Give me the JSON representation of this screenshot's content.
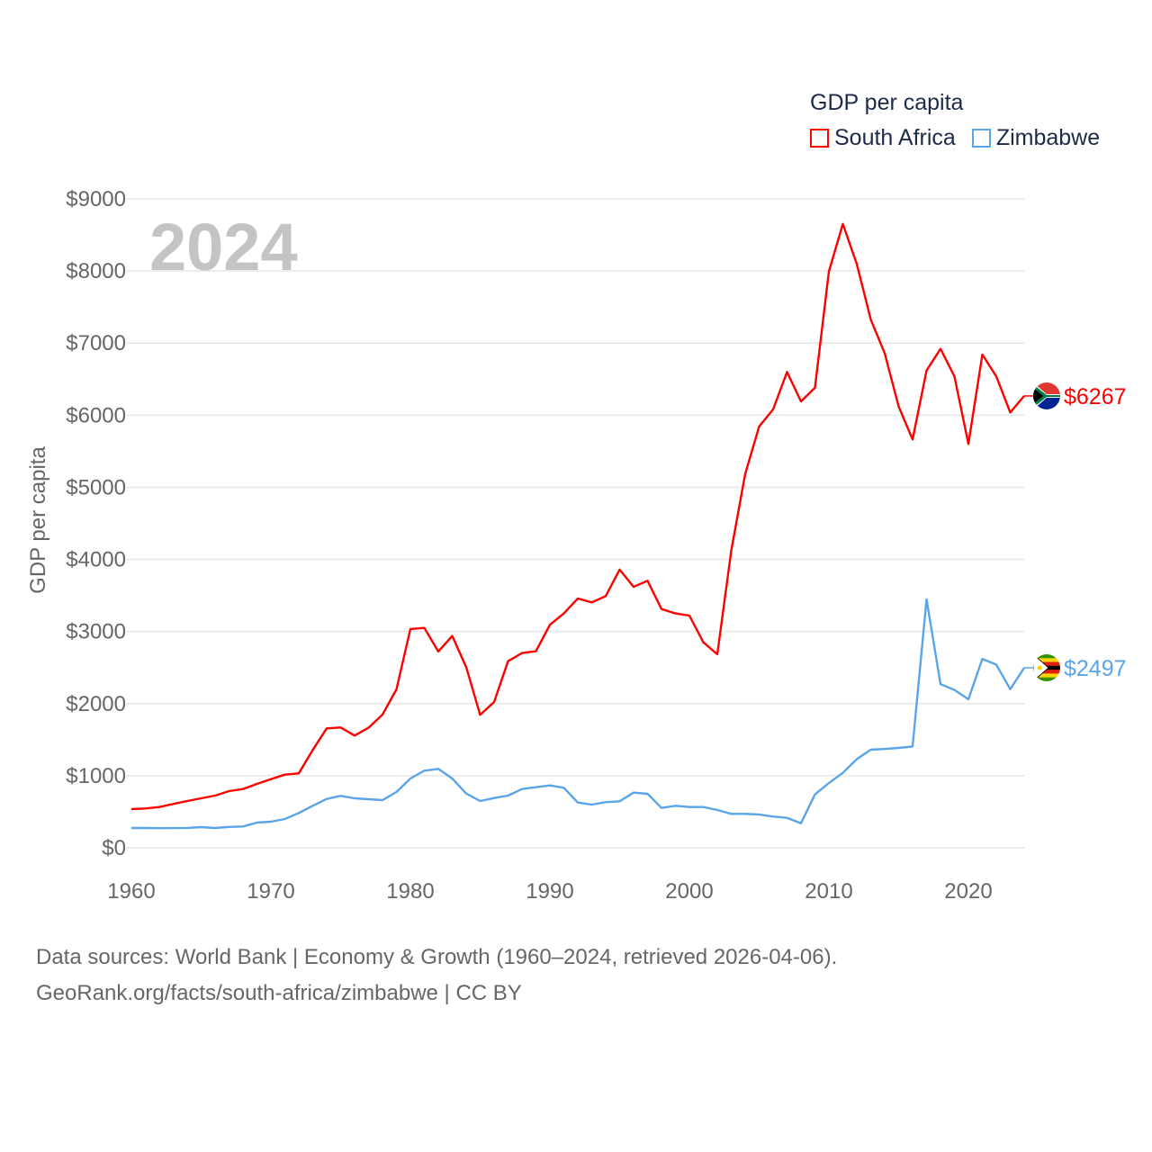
{
  "chart_data": {
    "type": "line",
    "title": "GDP per capita",
    "year_label": "2024",
    "xlabel": "",
    "ylabel": "GDP per capita",
    "xlim": [
      1960,
      2024
    ],
    "ylim": [
      0,
      9000
    ],
    "x_ticks": [
      "1960",
      "1970",
      "1980",
      "1990",
      "2000",
      "2010",
      "2020"
    ],
    "y_ticks": [
      "$0",
      "$1000",
      "$2000",
      "$3000",
      "$4000",
      "$5000",
      "$6000",
      "$7000",
      "$8000",
      "$9000"
    ],
    "grid": true,
    "legend_placement": "top-right",
    "x": [
      1960,
      1961,
      1962,
      1963,
      1964,
      1965,
      1966,
      1967,
      1968,
      1969,
      1970,
      1971,
      1972,
      1973,
      1974,
      1975,
      1976,
      1977,
      1978,
      1979,
      1980,
      1981,
      1982,
      1983,
      1984,
      1985,
      1986,
      1987,
      1988,
      1989,
      1990,
      1991,
      1992,
      1993,
      1994,
      1995,
      1996,
      1997,
      1998,
      1999,
      2000,
      2001,
      2002,
      2003,
      2004,
      2005,
      2006,
      2007,
      2008,
      2009,
      2010,
      2011,
      2012,
      2013,
      2014,
      2015,
      2016,
      2017,
      2018,
      2019,
      2020,
      2021,
      2022,
      2023,
      2024
    ],
    "series": [
      {
        "name": "South Africa",
        "color": "#ff0000",
        "end_label": "$6267",
        "values": [
          537,
          545,
          566,
          608,
          649,
          687,
          724,
          787,
          815,
          886,
          953,
          1015,
          1032,
          1357,
          1657,
          1669,
          1557,
          1665,
          1848,
          2197,
          3034,
          3050,
          2722,
          2938,
          2506,
          1844,
          2022,
          2588,
          2701,
          2726,
          3093,
          3250,
          3458,
          3404,
          3491,
          3858,
          3620,
          3704,
          3312,
          3250,
          3221,
          2850,
          2684,
          4120,
          5185,
          5843,
          6080,
          6600,
          6192,
          6380,
          7994,
          8652,
          8098,
          7328,
          6858,
          6121,
          5664,
          6620,
          6920,
          6538,
          5601,
          6841,
          6538,
          6038,
          6267
        ]
      },
      {
        "name": "Zimbabwe",
        "color": "#5aa5ea",
        "end_label": "$2497",
        "values": [
          275,
          275,
          272,
          273,
          276,
          287,
          275,
          289,
          296,
          350,
          362,
          400,
          483,
          583,
          678,
          720,
          687,
          674,
          662,
          774,
          961,
          1070,
          1095,
          961,
          753,
          649,
          690,
          724,
          815,
          840,
          865,
          832,
          628,
          599,
          633,
          645,
          765,
          749,
          553,
          583,
          566,
          566,
          524,
          470,
          470,
          462,
          433,
          416,
          341,
          740,
          899,
          1040,
          1230,
          1360,
          1370,
          1385,
          1405,
          3445,
          2270,
          2190,
          2060,
          2620,
          2540,
          2200,
          2497
        ]
      }
    ]
  },
  "footer": {
    "line1": "Data sources: World Bank | Economy & Growth (1960–2024, retrieved 2026-04-06).",
    "line2": "GeoRank.org/facts/south-africa/zimbabwe | CC BY"
  }
}
